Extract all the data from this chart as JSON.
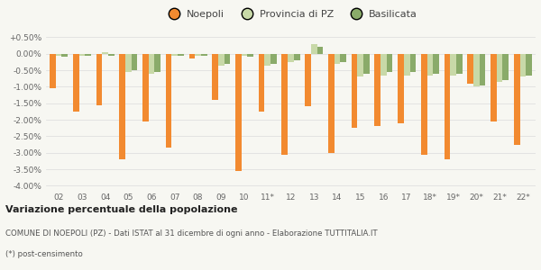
{
  "categories": [
    "02",
    "03",
    "04",
    "05",
    "06",
    "07",
    "08",
    "09",
    "10",
    "11*",
    "12",
    "13",
    "14",
    "15",
    "16",
    "17",
    "18*",
    "19*",
    "20*",
    "21*",
    "22*"
  ],
  "noepoli": [
    -1.05,
    -1.75,
    -1.55,
    -3.2,
    -2.05,
    -2.85,
    -0.15,
    -1.4,
    -3.55,
    -1.75,
    -3.05,
    -1.6,
    -3.0,
    -2.25,
    -2.2,
    -2.1,
    -3.05,
    -3.2,
    -0.9,
    -2.05,
    -2.75
  ],
  "provincia_pz": [
    -0.05,
    -0.05,
    0.05,
    -0.55,
    -0.6,
    -0.05,
    -0.05,
    -0.35,
    -0.05,
    -0.35,
    -0.25,
    0.3,
    -0.3,
    -0.7,
    -0.65,
    -0.65,
    -0.65,
    -0.65,
    -1.0,
    -0.85,
    -0.7
  ],
  "basilicata": [
    -0.1,
    -0.05,
    -0.05,
    -0.5,
    -0.55,
    -0.05,
    -0.05,
    -0.3,
    -0.1,
    -0.3,
    -0.2,
    0.2,
    -0.25,
    -0.6,
    -0.55,
    -0.55,
    -0.6,
    -0.6,
    -0.95,
    -0.8,
    -0.65
  ],
  "noepoli_color": "#f28a30",
  "provincia_color": "#c8d9a8",
  "basilicata_color": "#8aab6a",
  "bg_color": "#f7f7f2",
  "grid_color": "#e0e0e0",
  "title_bold": "Variazione percentuale della popolazione",
  "subtitle1": "COMUNE DI NOEPOLI (PZ) - Dati ISTAT al 31 dicembre di ogni anno - Elaborazione TUTTITALIA.IT",
  "subtitle2": "(*) post-censimento",
  "legend_labels": [
    "Noepoli",
    "Provincia di PZ",
    "Basilicata"
  ],
  "ylim": [
    -4.1,
    0.65
  ],
  "yticks": [
    0.5,
    0.0,
    -0.5,
    -1.0,
    -1.5,
    -2.0,
    -2.5,
    -3.0,
    -3.5,
    -4.0
  ],
  "ytick_labels": [
    "+0.50%",
    "0.00%",
    "-0.50%",
    "-1.00%",
    "-1.50%",
    "-2.00%",
    "-2.50%",
    "-3.00%",
    "-3.50%",
    "-4.00%"
  ]
}
